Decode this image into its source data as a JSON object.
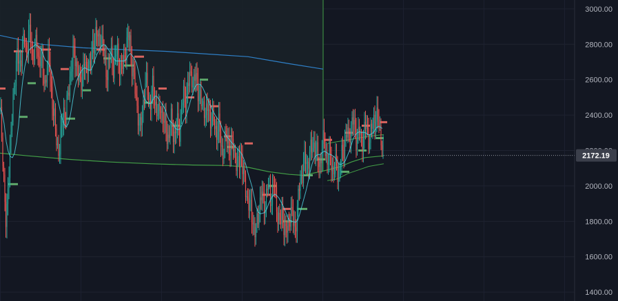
{
  "chart_data": {
    "type": "candlestick",
    "background": "#131722",
    "grid": true,
    "ylim": [
      1350,
      3050
    ],
    "y_ticks": [
      "3000.00",
      "2800.00",
      "2600.00",
      "2400.00",
      "2200.00",
      "2000.00",
      "1800.00",
      "1600.00",
      "1400.00"
    ],
    "last_price": 2172.19,
    "last_price_label": "2172.19",
    "colors": {
      "up": "#26a69a",
      "down": "#ef5350",
      "ma_fast": "#4dd0e1",
      "long_avg_blue": "#2f80c8",
      "long_avg_green": "#43a047",
      "vline": "#43a047",
      "marker_green": "#5fa96b",
      "marker_red": "#d9645f",
      "price_tag_bg": "#3b3f4b"
    },
    "close_path": [
      [
        0,
        2440
      ],
      [
        3,
        2260
      ],
      [
        6,
        2000
      ],
      [
        9,
        1730
      ],
      [
        12,
        2050
      ],
      [
        15,
        2240
      ],
      [
        18,
        2400
      ],
      [
        21,
        2600
      ],
      [
        25,
        2750
      ],
      [
        28,
        2660
      ],
      [
        32,
        2780
      ],
      [
        35,
        2840
      ],
      [
        38,
        2720
      ],
      [
        41,
        2880
      ],
      [
        44,
        2850
      ],
      [
        47,
        2700
      ],
      [
        50,
        2820
      ],
      [
        53,
        2780
      ],
      [
        56,
        2700
      ],
      [
        59,
        2760
      ],
      [
        62,
        2640
      ],
      [
        65,
        2560
      ],
      [
        68,
        2680
      ],
      [
        71,
        2720
      ],
      [
        74,
        2560
      ],
      [
        77,
        2440
      ],
      [
        80,
        2330
      ],
      [
        83,
        2230
      ],
      [
        86,
        2190
      ],
      [
        89,
        2300
      ],
      [
        92,
        2440
      ],
      [
        95,
        2390
      ],
      [
        98,
        2480
      ],
      [
        101,
        2600
      ],
      [
        104,
        2680
      ],
      [
        107,
        2760
      ],
      [
        110,
        2720
      ],
      [
        113,
        2640
      ],
      [
        116,
        2560
      ],
      [
        119,
        2620
      ],
      [
        122,
        2700
      ],
      [
        125,
        2640
      ],
      [
        128,
        2720
      ],
      [
        131,
        2660
      ],
      [
        134,
        2760
      ],
      [
        137,
        2830
      ],
      [
        140,
        2880
      ],
      [
        143,
        2800
      ],
      [
        146,
        2860
      ],
      [
        149,
        2780
      ],
      [
        152,
        2700
      ],
      [
        155,
        2640
      ],
      [
        158,
        2700
      ],
      [
        161,
        2760
      ],
      [
        164,
        2660
      ],
      [
        167,
        2700
      ],
      [
        170,
        2780
      ],
      [
        173,
        2700
      ],
      [
        176,
        2640
      ],
      [
        179,
        2700
      ],
      [
        182,
        2760
      ],
      [
        185,
        2820
      ],
      [
        188,
        2860
      ],
      [
        191,
        2700
      ],
      [
        194,
        2600
      ],
      [
        197,
        2520
      ],
      [
        200,
        2420
      ],
      [
        203,
        2310
      ],
      [
        206,
        2400
      ],
      [
        209,
        2520
      ],
      [
        212,
        2580
      ],
      [
        215,
        2520
      ],
      [
        218,
        2460
      ],
      [
        221,
        2560
      ],
      [
        224,
        2500
      ],
      [
        227,
        2440
      ],
      [
        230,
        2380
      ],
      [
        233,
        2470
      ],
      [
        236,
        2400
      ],
      [
        239,
        2340
      ],
      [
        242,
        2300
      ],
      [
        245,
        2260
      ],
      [
        248,
        2380
      ],
      [
        251,
        2320
      ],
      [
        254,
        2280
      ],
      [
        257,
        2360
      ],
      [
        260,
        2300
      ],
      [
        263,
        2420
      ],
      [
        266,
        2520
      ],
      [
        269,
        2480
      ],
      [
        272,
        2540
      ],
      [
        275,
        2600
      ],
      [
        278,
        2640
      ],
      [
        281,
        2580
      ],
      [
        284,
        2620
      ],
      [
        287,
        2560
      ],
      [
        290,
        2500
      ],
      [
        293,
        2440
      ],
      [
        296,
        2460
      ],
      [
        299,
        2400
      ],
      [
        302,
        2440
      ],
      [
        305,
        2380
      ],
      [
        308,
        2400
      ],
      [
        311,
        2340
      ],
      [
        314,
        2300
      ],
      [
        317,
        2360
      ],
      [
        320,
        2260
      ],
      [
        323,
        2180
      ],
      [
        326,
        2240
      ],
      [
        329,
        2280
      ],
      [
        332,
        2240
      ],
      [
        335,
        2200
      ],
      [
        338,
        2250
      ],
      [
        341,
        2180
      ],
      [
        344,
        2100
      ],
      [
        347,
        2140
      ],
      [
        350,
        2200
      ],
      [
        353,
        2060
      ],
      [
        356,
        2000
      ],
      [
        359,
        1930
      ],
      [
        362,
        1880
      ],
      [
        365,
        1860
      ],
      [
        368,
        1780
      ],
      [
        371,
        1720
      ],
      [
        374,
        1820
      ],
      [
        377,
        1900
      ],
      [
        380,
        1960
      ],
      [
        383,
        1880
      ],
      [
        386,
        1940
      ],
      [
        389,
        2010
      ],
      [
        392,
        1920
      ],
      [
        395,
        1960
      ],
      [
        398,
        2020
      ],
      [
        401,
        1900
      ],
      [
        404,
        1820
      ],
      [
        407,
        1780
      ],
      [
        410,
        1850
      ],
      [
        413,
        1760
      ],
      [
        416,
        1740
      ],
      [
        419,
        1800
      ],
      [
        422,
        1860
      ],
      [
        425,
        1800
      ],
      [
        428,
        1760
      ],
      [
        431,
        1840
      ],
      [
        434,
        1980
      ],
      [
        437,
        2050
      ],
      [
        440,
        2100
      ],
      [
        443,
        2150
      ],
      [
        446,
        2120
      ],
      [
        449,
        2180
      ],
      [
        452,
        2200
      ],
      [
        455,
        2240
      ],
      [
        458,
        2200
      ],
      [
        461,
        2160
      ],
      [
        464,
        2120
      ],
      [
        467,
        2200
      ],
      [
        470,
        2260
      ],
      [
        473,
        2180
      ],
      [
        476,
        2140
      ],
      [
        479,
        2200
      ],
      [
        482,
        2100
      ],
      [
        485,
        2080
      ],
      [
        488,
        2120
      ],
      [
        491,
        2060
      ],
      [
        494,
        2140
      ],
      [
        497,
        2180
      ],
      [
        500,
        2240
      ],
      [
        503,
        2300
      ],
      [
        506,
        2260
      ],
      [
        509,
        2340
      ],
      [
        512,
        2380
      ],
      [
        515,
        2300
      ],
      [
        518,
        2260
      ],
      [
        521,
        2320
      ],
      [
        524,
        2240
      ],
      [
        527,
        2280
      ],
      [
        530,
        2340
      ],
      [
        533,
        2300
      ],
      [
        536,
        2260
      ],
      [
        539,
        2320
      ],
      [
        542,
        2360
      ],
      [
        545,
        2400
      ],
      [
        548,
        2380
      ],
      [
        551,
        2320
      ],
      [
        554,
        2260
      ],
      [
        557,
        2172
      ]
    ],
    "blue_avg_path": [
      [
        0,
        2850
      ],
      [
        60,
        2800
      ],
      [
        120,
        2780
      ],
      [
        180,
        2770
      ],
      [
        240,
        2760
      ],
      [
        300,
        2745
      ],
      [
        360,
        2730
      ],
      [
        420,
        2690
      ],
      [
        469,
        2660
      ]
    ],
    "green_avg_path": [
      [
        0,
        2185
      ],
      [
        40,
        2170
      ],
      [
        100,
        2150
      ],
      [
        160,
        2135
      ],
      [
        220,
        2125
      ],
      [
        280,
        2118
      ],
      [
        330,
        2115
      ],
      [
        360,
        2105
      ],
      [
        390,
        2080
      ],
      [
        420,
        2065
      ],
      [
        440,
        2060
      ],
      [
        470,
        2085
      ],
      [
        480,
        2095
      ],
      [
        495,
        2110
      ],
      [
        510,
        2135
      ],
      [
        530,
        2160
      ],
      [
        557,
        2170
      ]
    ],
    "band_upper_path": [
      [
        475,
        2240
      ],
      [
        490,
        2250
      ],
      [
        505,
        2260
      ],
      [
        520,
        2270
      ],
      [
        535,
        2280
      ],
      [
        557,
        2290
      ]
    ],
    "band_lower_path": [
      [
        475,
        2030
      ],
      [
        490,
        2040
      ],
      [
        505,
        2070
      ],
      [
        520,
        2090
      ],
      [
        535,
        2110
      ],
      [
        557,
        2125
      ]
    ],
    "vline_x": 469,
    "markers_green": [
      [
        12,
        2010,
        14
      ],
      [
        28,
        2390,
        12
      ],
      [
        40,
        2580,
        12
      ],
      [
        95,
        2380,
        14
      ],
      [
        120,
        2540,
        12
      ],
      [
        150,
        2720,
        12
      ],
      [
        180,
        2680,
        14
      ],
      [
        210,
        2470,
        12
      ],
      [
        250,
        2340,
        12
      ],
      [
        290,
        2600,
        12
      ],
      [
        330,
        2220,
        12
      ],
      [
        390,
        2000,
        12
      ],
      [
        410,
        1800,
        14
      ],
      [
        432,
        1870,
        14
      ],
      [
        440,
        2060,
        14
      ],
      [
        460,
        2150,
        12
      ],
      [
        495,
        2080,
        12
      ],
      [
        520,
        2200,
        12
      ],
      [
        545,
        2270,
        12
      ]
    ],
    "markers_red": [
      [
        0,
        2550,
        8
      ],
      [
        20,
        2760,
        14
      ],
      [
        60,
        2770,
        14
      ],
      [
        88,
        2660,
        12
      ],
      [
        140,
        2770,
        12
      ],
      [
        195,
        2730,
        14
      ],
      [
        230,
        2550,
        12
      ],
      [
        270,
        2500,
        12
      ],
      [
        305,
        2450,
        12
      ],
      [
        325,
        2280,
        12
      ],
      [
        355,
        2240,
        12
      ],
      [
        380,
        1950,
        12
      ],
      [
        410,
        1870,
        12
      ],
      [
        470,
        2260,
        12
      ],
      [
        500,
        2300,
        12
      ],
      [
        525,
        2340,
        12
      ],
      [
        552,
        2360,
        10
      ]
    ]
  }
}
